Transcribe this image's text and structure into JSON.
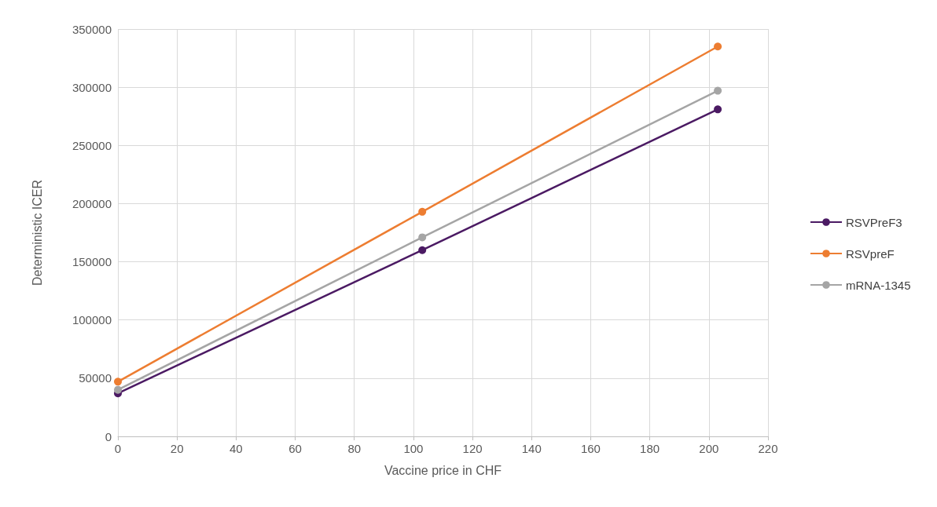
{
  "chart_data": {
    "type": "line",
    "xlabel": "Vaccine price in CHF",
    "ylabel": "Deterministic ICER",
    "x": [
      0,
      103,
      203
    ],
    "series": [
      {
        "name": "RSVPreF3",
        "color": "#4b1a63",
        "values": [
          37000,
          160000,
          281000
        ]
      },
      {
        "name": "RSVpreF",
        "color": "#ed7d31",
        "values": [
          47000,
          193000,
          335000
        ]
      },
      {
        "name": "mRNA-1345",
        "color": "#a5a5a5",
        "values": [
          40000,
          171000,
          297000
        ]
      }
    ],
    "xlim": [
      0,
      220
    ],
    "xticks": [
      0,
      20,
      40,
      60,
      80,
      100,
      120,
      140,
      160,
      180,
      200,
      220
    ],
    "ylim": [
      0,
      350000
    ],
    "yticks": [
      0,
      50000,
      100000,
      150000,
      200000,
      250000,
      300000,
      350000
    ],
    "grid": true,
    "legend": "right",
    "marker": "circle",
    "line_style": "solid"
  }
}
